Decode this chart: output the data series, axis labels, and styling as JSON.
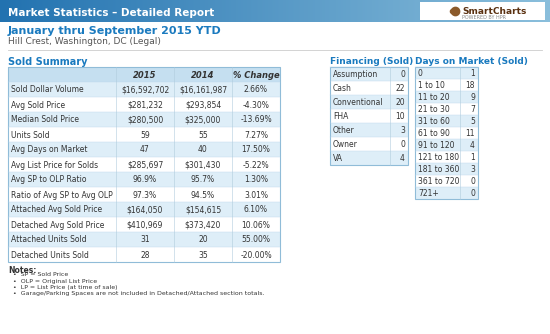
{
  "header_title": "Market Statistics – Detailed Report",
  "subtitle": "January thru September 2015 YTD",
  "location": "Hill Crest, Washington, DC (Legal)",
  "header_bg_left": "#2e7fbf",
  "header_bg_right": "#a8cde8",
  "header_text_color": "#ffffff",
  "subtitle_color": "#1a7abf",
  "section_title_color": "#1a7abf",
  "table_header_bg": "#c5dff0",
  "table_alt_row_bg": "#deeef8",
  "table_border_color": "#a0c4e0",
  "smartcharts_color": "#7a4a1a",
  "sold_summary": {
    "title": "Sold Summary",
    "columns": [
      "",
      "2015",
      "2014",
      "% Change"
    ],
    "rows": [
      [
        "Sold Dollar Volume",
        "$16,592,702",
        "$16,161,987",
        "2.66%"
      ],
      [
        "Avg Sold Price",
        "$281,232",
        "$293,854",
        "-4.30%"
      ],
      [
        "Median Sold Price",
        "$280,500",
        "$325,000",
        "-13.69%"
      ],
      [
        "Units Sold",
        "59",
        "55",
        "7.27%"
      ],
      [
        "Avg Days on Market",
        "47",
        "40",
        "17.50%"
      ],
      [
        "Avg List Price for Solds",
        "$285,697",
        "$301,430",
        "-5.22%"
      ],
      [
        "Avg SP to OLP Ratio",
        "96.9%",
        "95.7%",
        "1.30%"
      ],
      [
        "Ratio of Avg SP to Avg OLP",
        "97.3%",
        "94.5%",
        "3.01%"
      ],
      [
        "Attached Avg Sold Price",
        "$164,050",
        "$154,615",
        "6.10%"
      ],
      [
        "Detached Avg Sold Price",
        "$410,969",
        "$373,420",
        "10.06%"
      ],
      [
        "Attached Units Sold",
        "31",
        "20",
        "55.00%"
      ],
      [
        "Detached Units Sold",
        "28",
        "35",
        "-20.00%"
      ]
    ]
  },
  "financing": {
    "title": "Financing (Sold)",
    "rows": [
      [
        "Assumption",
        "0"
      ],
      [
        "Cash",
        "22"
      ],
      [
        "Conventional",
        "20"
      ],
      [
        "FHA",
        "10"
      ],
      [
        "Other",
        "3"
      ],
      [
        "Owner",
        "0"
      ],
      [
        "VA",
        "4"
      ]
    ]
  },
  "days_on_market": {
    "title": "Days on Market (Sold)",
    "rows": [
      [
        "0",
        "1"
      ],
      [
        "1 to 10",
        "18"
      ],
      [
        "11 to 20",
        "9"
      ],
      [
        "21 to 30",
        "7"
      ],
      [
        "31 to 60",
        "5"
      ],
      [
        "61 to 90",
        "11"
      ],
      [
        "91 to 120",
        "4"
      ],
      [
        "121 to 180",
        "1"
      ],
      [
        "181 to 360",
        "3"
      ],
      [
        "361 to 720",
        "0"
      ],
      [
        "721+",
        "0"
      ]
    ]
  },
  "notes": [
    "SP = Sold Price",
    "OLP = Original List Price",
    "LP = List Price (at time of sale)",
    "Garage/Parking Spaces are not included in Detached/Attached section totals."
  ]
}
